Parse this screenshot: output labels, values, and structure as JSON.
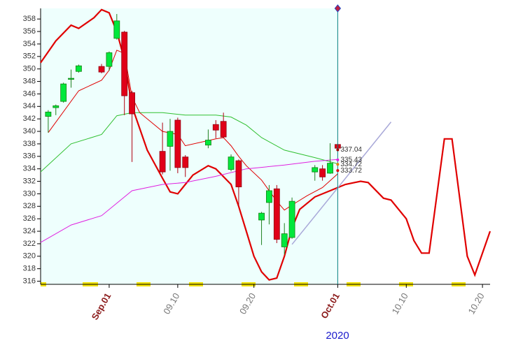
{
  "chart_data": {
    "type": "candlestick",
    "ylim": [
      315.5,
      359.7
    ],
    "yticks": [
      316,
      318,
      320,
      322,
      324,
      326,
      328,
      330,
      332,
      334,
      336,
      338,
      340,
      342,
      344,
      346,
      348,
      350,
      352,
      354,
      356,
      358
    ],
    "xlim": [
      "2020-08-23",
      "2020-10-21"
    ],
    "xticks": [
      {
        "value": "2020-09-01",
        "label": "Sep.01"
      },
      {
        "value": "2020-09-10",
        "label": "09.10"
      },
      {
        "value": "2020-09-20",
        "label": "09.20"
      },
      {
        "value": "2020-10-01",
        "label": "Oct.01"
      },
      {
        "value": "2020-10-10",
        "label": "10.10"
      },
      {
        "value": "2020-10-20",
        "label": "10.20"
      }
    ],
    "xlabel": "2020",
    "up_color": "#00e83c",
    "down_color": "#e00018",
    "candles": {
      "x": [
        "2020-08-24",
        "2020-08-25",
        "2020-08-26",
        "2020-08-27",
        "2020-08-28",
        "2020-08-31",
        "2020-09-01",
        "2020-09-02",
        "2020-09-03",
        "2020-09-04",
        "2020-09-08",
        "2020-09-09",
        "2020-09-10",
        "2020-09-11",
        "2020-09-14",
        "2020-09-15",
        "2020-09-16",
        "2020-09-17",
        "2020-09-18",
        "2020-09-21",
        "2020-09-22",
        "2020-09-23",
        "2020-09-24",
        "2020-09-25",
        "2020-09-28",
        "2020-09-29",
        "2020-09-30",
        "2020-10-01"
      ],
      "open": [
        342.4,
        343.8,
        344.8,
        348.4,
        349.6,
        350.4,
        350.4,
        354.9,
        355.9,
        346.2,
        336.8,
        337.6,
        341.8,
        335.9,
        337.8,
        341.1,
        341.6,
        333.9,
        335.3,
        325.8,
        328.6,
        330.8,
        321.5,
        323.0,
        333.5,
        334.0,
        333.3,
        337.9
      ],
      "high": [
        343.4,
        344.3,
        347.8,
        349.9,
        350.7,
        350.8,
        352.8,
        358.8,
        356.1,
        346.5,
        341.4,
        342.0,
        342.2,
        336.2,
        340.3,
        341.8,
        343.0,
        336.3,
        335.5,
        327.1,
        331.4,
        331.4,
        325.3,
        329.4,
        334.6,
        334.6,
        338.1,
        338.0
      ],
      "low": [
        339.8,
        342.6,
        344.6,
        347.0,
        349.4,
        349.3,
        349.7,
        354.7,
        342.6,
        335.1,
        333.1,
        333.7,
        333.3,
        332.7,
        337.3,
        338.9,
        338.9,
        333.6,
        328.0,
        321.8,
        325.1,
        322.1,
        320.3,
        322.8,
        332.1,
        332.1,
        333.2,
        337.1
      ],
      "close": [
        343.1,
        344.1,
        347.6,
        348.5,
        350.5,
        349.5,
        352.6,
        357.7,
        345.7,
        342.8,
        333.5,
        340.0,
        334.2,
        334.2,
        338.6,
        340.2,
        339.1,
        335.9,
        331.1,
        326.9,
        330.5,
        322.7,
        323.6,
        328.8,
        334.2,
        332.7,
        334.9,
        337.3
      ]
    },
    "lines": [
      {
        "color": "#e00000",
        "width": 2.2,
        "x": [
          "2020-08-23",
          "2020-08-25",
          "2020-08-27",
          "2020-08-28",
          "2020-08-30",
          "2020-08-31",
          "2020-09-01",
          "2020-09-02",
          "2020-09-03",
          "2020-09-04",
          "2020-09-06",
          "2020-09-08",
          "2020-09-09",
          "2020-09-10",
          "2020-09-11",
          "2020-09-12",
          "2020-09-14",
          "2020-09-15",
          "2020-09-17",
          "2020-09-18",
          "2020-09-19",
          "2020-09-20",
          "2020-09-21",
          "2020-09-22",
          "2020-09-23",
          "2020-09-24",
          "2020-09-25",
          "2020-09-26",
          "2020-09-28",
          "2020-09-30",
          "2020-10-01",
          "2020-10-02",
          "2020-10-04",
          "2020-10-05",
          "2020-10-07",
          "2020-10-08",
          "2020-10-10",
          "2020-10-11",
          "2020-10-12",
          "2020-10-13",
          "2020-10-15",
          "2020-10-16",
          "2020-10-18",
          "2020-10-19",
          "2020-10-21"
        ],
        "values": [
          351.0,
          354.5,
          357.0,
          356.5,
          358.2,
          359.5,
          359.0,
          356.0,
          351.5,
          344.0,
          337.0,
          332.5,
          330.3,
          330.0,
          331.5,
          333.0,
          334.5,
          334.0,
          331.5,
          328.0,
          324.0,
          320.0,
          317.5,
          316.2,
          316.5,
          320.0,
          324.5,
          327.5,
          329.5,
          330.5,
          331.0,
          331.5,
          332.0,
          331.8,
          329.3,
          329.0,
          326.0,
          322.5,
          320.5,
          320.5,
          338.8,
          338.8,
          320.0,
          317.0,
          324.0
        ]
      },
      {
        "color": "#30c030",
        "width": 1,
        "x": [
          "2020-08-23",
          "2020-08-27",
          "2020-08-31",
          "2020-09-02",
          "2020-09-04",
          "2020-09-08",
          "2020-09-11",
          "2020-09-15",
          "2020-09-17",
          "2020-09-19",
          "2020-09-21",
          "2020-09-24",
          "2020-09-28",
          "2020-10-01"
        ],
        "values": [
          333.5,
          338.0,
          339.5,
          342.5,
          343.0,
          343.0,
          342.6,
          342.6,
          342.3,
          341.0,
          339.0,
          337.0,
          335.8,
          334.8
        ]
      },
      {
        "color": "#e00000",
        "width": 1,
        "x": [
          "2020-08-24",
          "2020-08-28",
          "2020-08-31",
          "2020-09-01",
          "2020-09-02",
          "2020-09-03",
          "2020-09-04",
          "2020-09-05",
          "2020-09-08",
          "2020-09-10",
          "2020-09-11",
          "2020-09-15",
          "2020-09-16",
          "2020-09-17",
          "2020-09-18",
          "2020-09-19",
          "2020-09-21",
          "2020-09-23",
          "2020-09-24",
          "2020-09-25",
          "2020-09-27",
          "2020-09-29",
          "2020-10-01"
        ],
        "values": [
          339.8,
          346.5,
          348.2,
          349.8,
          353.0,
          352.5,
          345.5,
          343.0,
          340.0,
          339.5,
          337.7,
          338.8,
          339.0,
          337.7,
          336.0,
          334.5,
          332.2,
          328.8,
          327.4,
          328.2,
          329.7,
          331.0,
          333.2
        ]
      },
      {
        "color": "#e020e0",
        "width": 1,
        "x": [
          "2020-08-23",
          "2020-08-27",
          "2020-08-31",
          "2020-09-04",
          "2020-09-08",
          "2020-09-11",
          "2020-09-15",
          "2020-09-19",
          "2020-09-24",
          "2020-09-28",
          "2020-10-01"
        ],
        "values": [
          322.2,
          325.0,
          326.5,
          330.5,
          331.5,
          331.8,
          332.8,
          334.0,
          334.6,
          335.2,
          335.5
        ]
      },
      {
        "color": "#a8a8d8",
        "width": 1.5,
        "x": [
          "2020-09-25",
          "2020-10-08"
        ],
        "values": [
          321.9,
          341.5
        ]
      }
    ],
    "annotations": [
      337.04,
      335.43,
      334.72,
      333.72
    ]
  }
}
